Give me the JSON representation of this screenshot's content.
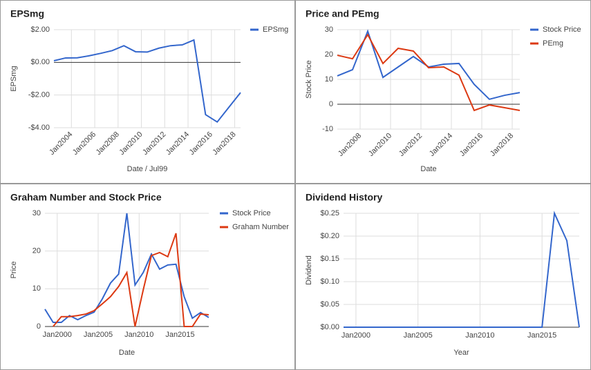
{
  "chart_data": [
    {
      "type": "line",
      "title": "EPSmg",
      "ylabel": "EPSmg",
      "xlabel": "Date / Jul99",
      "legend": "right",
      "x": [
        "2002-07",
        "2003-07",
        "2004-07",
        "2005-07",
        "2006-07",
        "2007-07",
        "2008-07",
        "2009-07",
        "2010-07",
        "2011-07",
        "2012-07",
        "2013-07",
        "2014-07",
        "2015-07",
        "2016-07",
        "2017-07",
        "2018-07"
      ],
      "series": [
        {
          "name": "EPSmg",
          "color": "#3366cc",
          "values": [
            0.1,
            0.27,
            0.28,
            0.4,
            0.55,
            0.72,
            1.02,
            0.65,
            0.63,
            0.87,
            1.02,
            1.07,
            1.37,
            -3.2,
            -3.65,
            -2.75,
            -1.85
          ]
        }
      ],
      "xlim": [
        "2002-07",
        "2018-07"
      ],
      "xticks": [
        {
          "value": "2004-01",
          "label": "Jan2004"
        },
        {
          "value": "2006-01",
          "label": "Jan2006"
        },
        {
          "value": "2008-01",
          "label": "Jan2008"
        },
        {
          "value": "2010-01",
          "label": "Jan2010"
        },
        {
          "value": "2012-01",
          "label": "Jan2012"
        },
        {
          "value": "2014-01",
          "label": "Jan2014"
        },
        {
          "value": "2016-01",
          "label": "Jan2016"
        },
        {
          "value": "2018-01",
          "label": "Jan2018"
        }
      ],
      "ylim": [
        -4,
        2
      ],
      "yticks": [
        {
          "value": 2,
          "label": "$2.00"
        },
        {
          "value": 0,
          "label": "$0.00"
        },
        {
          "value": -2,
          "label": "-$2.00"
        },
        {
          "value": -4,
          "label": "-$4.00"
        }
      ],
      "grid": true
    },
    {
      "type": "line",
      "title": "Price and PEmg",
      "ylabel": "Stock Price",
      "xlabel": "Date",
      "legend": "right",
      "x": [
        "2006-07",
        "2007-07",
        "2008-07",
        "2009-07",
        "2010-07",
        "2011-07",
        "2012-07",
        "2013-07",
        "2014-07",
        "2015-07",
        "2016-07",
        "2017-07",
        "2018-07"
      ],
      "series": [
        {
          "name": "Stock Price",
          "color": "#3366cc",
          "values": [
            11.4,
            13.9,
            29.4,
            10.8,
            15,
            19.2,
            15,
            16.1,
            16.4,
            8,
            2,
            3.6,
            4.7
          ]
        },
        {
          "name": "PEmg",
          "color": "#dc3912",
          "values": [
            19.7,
            18.3,
            28,
            16.4,
            22.5,
            21.4,
            14.7,
            15,
            11.7,
            -2.5,
            -0.3,
            -1.4,
            -2.5
          ]
        }
      ],
      "xlim": [
        "2006-07",
        "2018-07"
      ],
      "xticks": [
        {
          "value": "2008-01",
          "label": "Jan2008"
        },
        {
          "value": "2010-01",
          "label": "Jan2010"
        },
        {
          "value": "2012-01",
          "label": "Jan2012"
        },
        {
          "value": "2014-01",
          "label": "Jan2014"
        },
        {
          "value": "2016-01",
          "label": "Jan2016"
        },
        {
          "value": "2018-01",
          "label": "Jan2018"
        }
      ],
      "ylim": [
        -10,
        30
      ],
      "yticks": [
        30,
        20,
        10,
        0,
        -10
      ],
      "grid": true
    },
    {
      "type": "line",
      "title": "Graham Number and Stock Price",
      "ylabel": "Price",
      "xlabel": "Date",
      "legend": "right",
      "x": [
        "1998-07",
        "1999-07",
        "2000-07",
        "2001-07",
        "2002-07",
        "2003-07",
        "2004-07",
        "2005-07",
        "2006-07",
        "2007-07",
        "2008-07",
        "2009-07",
        "2010-07",
        "2011-07",
        "2012-07",
        "2013-07",
        "2014-07",
        "2015-07",
        "2016-07",
        "2017-07",
        "2018-07"
      ],
      "series": [
        {
          "name": "Stock Price",
          "color": "#3366cc",
          "values": [
            4.6,
            1.1,
            1.1,
            2.9,
            1.8,
            2.9,
            3.8,
            7.3,
            11.5,
            13.9,
            30,
            11,
            14.3,
            19.2,
            15.2,
            16.3,
            16.5,
            7.9,
            2.2,
            3.7,
            2.4
          ]
        },
        {
          "name": "Graham Number",
          "color": "#dc3912",
          "values": [
            null,
            0,
            2.6,
            2.6,
            2.9,
            3.3,
            4.2,
            6,
            7.9,
            10.6,
            14.3,
            0,
            9.7,
            18.8,
            19.6,
            18.5,
            24.7,
            0,
            0,
            3.3,
            3.1
          ]
        }
      ],
      "xlim": [
        "1998-07",
        "2018-07"
      ],
      "xticks": [
        {
          "value": "2000-01",
          "label": "Jan2000"
        },
        {
          "value": "2005-01",
          "label": "Jan2005"
        },
        {
          "value": "2010-01",
          "label": "Jan2010"
        },
        {
          "value": "2015-01",
          "label": "Jan2015"
        }
      ],
      "ylim": [
        0,
        30
      ],
      "yticks": [
        30,
        20,
        10,
        0
      ],
      "grid": true
    },
    {
      "type": "line",
      "title": "Dividend History",
      "ylabel": "Dividend",
      "xlabel": "Year",
      "x": [
        "1999-01",
        "2000-01",
        "2001-01",
        "2002-01",
        "2003-01",
        "2004-01",
        "2005-01",
        "2006-01",
        "2007-01",
        "2008-01",
        "2009-01",
        "2010-01",
        "2011-01",
        "2012-01",
        "2013-01",
        "2014-01",
        "2015-01",
        "2016-01",
        "2017-01",
        "2018-01"
      ],
      "series": [
        {
          "color": "#3366cc",
          "values": [
            0,
            0,
            0,
            0,
            0,
            0,
            0,
            0,
            0,
            0,
            0,
            0,
            0,
            0,
            0,
            0,
            0,
            0.25,
            0.19,
            0
          ]
        }
      ],
      "xlim": [
        "1999-01",
        "2018-01"
      ],
      "xticks": [
        {
          "value": "2000-01",
          "label": "Jan2000"
        },
        {
          "value": "2005-01",
          "label": "Jan2005"
        },
        {
          "value": "2010-01",
          "label": "Jan2010"
        },
        {
          "value": "2015-01",
          "label": "Jan2015"
        }
      ],
      "ylim": [
        0,
        0.25
      ],
      "yticks": [
        {
          "value": 0.25,
          "label": "$0.25"
        },
        {
          "value": 0.2,
          "label": "$0.20"
        },
        {
          "value": 0.15,
          "label": "$0.15"
        },
        {
          "value": 0.1,
          "label": "$0.10"
        },
        {
          "value": 0.05,
          "label": "$0.05"
        },
        {
          "value": 0,
          "label": "$0.00"
        }
      ],
      "grid": true
    }
  ]
}
